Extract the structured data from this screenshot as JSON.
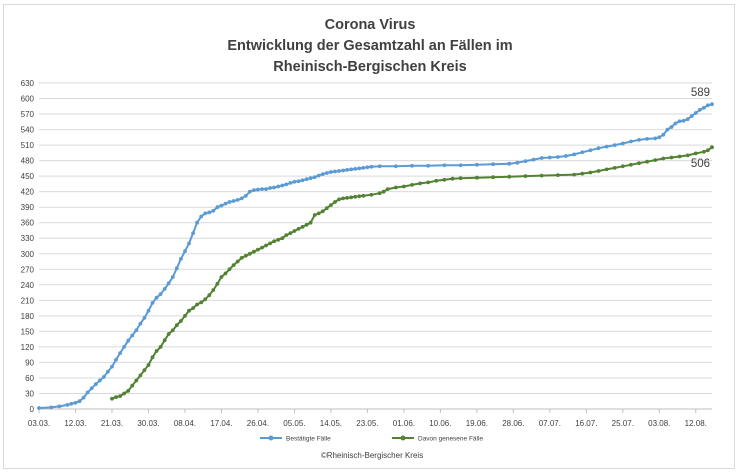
{
  "chart_data": {
    "type": "line",
    "title_lines": [
      "Corona Virus",
      "Entwicklung der Gesamtzahl an Fällen im",
      "Rheinisch-Bergischen Kreis"
    ],
    "x_tick_labels": [
      "03.03.",
      "12.03.",
      "21.03.",
      "30.03.",
      "08.04.",
      "17.04.",
      "26.04.",
      "05.05.",
      "14.05.",
      "23.05.",
      "01.06.",
      "10.06.",
      "19.06.",
      "28.06.",
      "07.07.",
      "16.07.",
      "25.07.",
      "03.08.",
      "12.08."
    ],
    "y_ticks": [
      0,
      30,
      60,
      90,
      120,
      150,
      180,
      210,
      240,
      270,
      300,
      330,
      360,
      390,
      420,
      450,
      480,
      510,
      540,
      570,
      600,
      630
    ],
    "ylim": [
      0,
      630
    ],
    "x_unit": "days since 03.03.",
    "grid": "horizontal",
    "legend_position": "bottom",
    "series": [
      {
        "name": "Bestätigte Fälle",
        "color": "#5b9bd5",
        "end_label": "589",
        "points": [
          [
            0,
            2
          ],
          [
            3,
            3
          ],
          [
            5,
            5
          ],
          [
            7,
            8
          ],
          [
            8,
            10
          ],
          [
            9,
            12
          ],
          [
            10,
            15
          ],
          [
            11,
            22
          ],
          [
            12,
            32
          ],
          [
            13,
            40
          ],
          [
            14,
            48
          ],
          [
            15,
            55
          ],
          [
            16,
            62
          ],
          [
            17,
            72
          ],
          [
            18,
            82
          ],
          [
            19,
            95
          ],
          [
            20,
            108
          ],
          [
            21,
            120
          ],
          [
            22,
            132
          ],
          [
            23,
            142
          ],
          [
            24,
            152
          ],
          [
            25,
            165
          ],
          [
            26,
            176
          ],
          [
            27,
            190
          ],
          [
            28,
            205
          ],
          [
            29,
            215
          ],
          [
            30,
            222
          ],
          [
            31,
            232
          ],
          [
            32,
            243
          ],
          [
            33,
            255
          ],
          [
            34,
            272
          ],
          [
            35,
            290
          ],
          [
            36,
            305
          ],
          [
            37,
            320
          ],
          [
            38,
            340
          ],
          [
            39,
            360
          ],
          [
            40,
            372
          ],
          [
            41,
            378
          ],
          [
            42,
            380
          ],
          [
            43,
            383
          ],
          [
            44,
            390
          ],
          [
            45,
            393
          ],
          [
            46,
            397
          ],
          [
            47,
            400
          ],
          [
            48,
            402
          ],
          [
            49,
            404
          ],
          [
            50,
            407
          ],
          [
            51,
            412
          ],
          [
            52,
            420
          ],
          [
            53,
            423
          ],
          [
            54,
            424
          ],
          [
            55,
            425
          ],
          [
            56,
            425
          ],
          [
            57,
            427
          ],
          [
            58,
            428
          ],
          [
            59,
            430
          ],
          [
            60,
            432
          ],
          [
            61,
            434
          ],
          [
            62,
            437
          ],
          [
            63,
            439
          ],
          [
            64,
            440
          ],
          [
            65,
            442
          ],
          [
            66,
            444
          ],
          [
            67,
            446
          ],
          [
            68,
            448
          ],
          [
            69,
            451
          ],
          [
            70,
            454
          ],
          [
            71,
            456
          ],
          [
            72,
            458
          ],
          [
            73,
            459
          ],
          [
            74,
            460
          ],
          [
            75,
            461
          ],
          [
            76,
            462
          ],
          [
            77,
            463
          ],
          [
            78,
            464
          ],
          [
            79,
            465
          ],
          [
            80,
            466
          ],
          [
            81,
            467
          ],
          [
            82,
            468
          ],
          [
            84,
            469
          ],
          [
            88,
            469
          ],
          [
            92,
            470
          ],
          [
            96,
            470
          ],
          [
            100,
            471
          ],
          [
            104,
            471
          ],
          [
            108,
            472
          ],
          [
            112,
            473
          ],
          [
            116,
            474
          ],
          [
            118,
            476
          ],
          [
            120,
            479
          ],
          [
            122,
            482
          ],
          [
            124,
            485
          ],
          [
            126,
            486
          ],
          [
            128,
            487
          ],
          [
            130,
            489
          ],
          [
            132,
            492
          ],
          [
            134,
            496
          ],
          [
            136,
            500
          ],
          [
            138,
            504
          ],
          [
            140,
            507
          ],
          [
            142,
            510
          ],
          [
            144,
            513
          ],
          [
            146,
            517
          ],
          [
            148,
            520
          ],
          [
            150,
            522
          ],
          [
            152,
            523
          ],
          [
            153,
            525
          ],
          [
            154,
            530
          ],
          [
            155,
            540
          ],
          [
            156,
            545
          ],
          [
            157,
            552
          ],
          [
            158,
            556
          ],
          [
            159,
            557
          ],
          [
            160,
            560
          ],
          [
            161,
            566
          ],
          [
            162,
            572
          ],
          [
            163,
            578
          ],
          [
            164,
            582
          ],
          [
            165,
            587
          ],
          [
            166,
            589
          ]
        ]
      },
      {
        "name": "Davon genesene Fälle",
        "color": "#548235",
        "end_label": "506",
        "points": [
          [
            18,
            20
          ],
          [
            19,
            23
          ],
          [
            20,
            25
          ],
          [
            21,
            30
          ],
          [
            22,
            35
          ],
          [
            23,
            45
          ],
          [
            24,
            55
          ],
          [
            25,
            65
          ],
          [
            26,
            75
          ],
          [
            27,
            85
          ],
          [
            28,
            100
          ],
          [
            29,
            112
          ],
          [
            30,
            120
          ],
          [
            31,
            133
          ],
          [
            32,
            145
          ],
          [
            33,
            152
          ],
          [
            34,
            162
          ],
          [
            35,
            170
          ],
          [
            36,
            180
          ],
          [
            37,
            190
          ],
          [
            38,
            195
          ],
          [
            39,
            202
          ],
          [
            40,
            206
          ],
          [
            41,
            212
          ],
          [
            42,
            220
          ],
          [
            43,
            230
          ],
          [
            44,
            242
          ],
          [
            45,
            255
          ],
          [
            46,
            262
          ],
          [
            47,
            270
          ],
          [
            48,
            278
          ],
          [
            49,
            285
          ],
          [
            50,
            292
          ],
          [
            51,
            296
          ],
          [
            52,
            300
          ],
          [
            53,
            304
          ],
          [
            54,
            308
          ],
          [
            55,
            312
          ],
          [
            56,
            316
          ],
          [
            57,
            320
          ],
          [
            58,
            324
          ],
          [
            59,
            327
          ],
          [
            60,
            330
          ],
          [
            61,
            336
          ],
          [
            62,
            340
          ],
          [
            63,
            344
          ],
          [
            64,
            348
          ],
          [
            65,
            352
          ],
          [
            66,
            356
          ],
          [
            67,
            360
          ],
          [
            68,
            375
          ],
          [
            69,
            378
          ],
          [
            70,
            382
          ],
          [
            71,
            388
          ],
          [
            72,
            394
          ],
          [
            73,
            400
          ],
          [
            74,
            405
          ],
          [
            75,
            407
          ],
          [
            76,
            408
          ],
          [
            77,
            409
          ],
          [
            78,
            410
          ],
          [
            79,
            411
          ],
          [
            80,
            412
          ],
          [
            82,
            414
          ],
          [
            84,
            417
          ],
          [
            85,
            420
          ],
          [
            86,
            425
          ],
          [
            88,
            428
          ],
          [
            90,
            430
          ],
          [
            92,
            433
          ],
          [
            94,
            436
          ],
          [
            96,
            438
          ],
          [
            98,
            441
          ],
          [
            100,
            443
          ],
          [
            102,
            445
          ],
          [
            104,
            446
          ],
          [
            108,
            447
          ],
          [
            112,
            448
          ],
          [
            116,
            449
          ],
          [
            120,
            450
          ],
          [
            124,
            451
          ],
          [
            128,
            452
          ],
          [
            132,
            453
          ],
          [
            134,
            455
          ],
          [
            136,
            457
          ],
          [
            138,
            460
          ],
          [
            140,
            463
          ],
          [
            142,
            466
          ],
          [
            144,
            469
          ],
          [
            146,
            472
          ],
          [
            148,
            475
          ],
          [
            150,
            478
          ],
          [
            152,
            481
          ],
          [
            154,
            484
          ],
          [
            156,
            486
          ],
          [
            158,
            488
          ],
          [
            160,
            490
          ],
          [
            162,
            494
          ],
          [
            164,
            497
          ],
          [
            165,
            500
          ],
          [
            166,
            506
          ]
        ]
      }
    ]
  },
  "credit": "©Rheinisch-Bergischer Kreis"
}
